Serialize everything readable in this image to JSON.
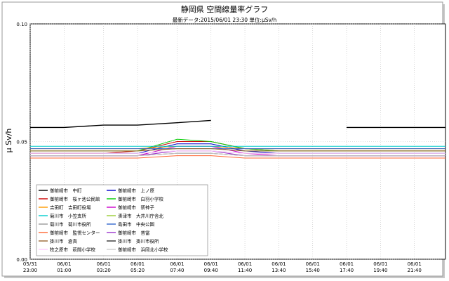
{
  "chart_data": {
    "type": "line",
    "title": "静岡県 空間線量率グラフ",
    "subtitle": "最新データ:2015/06/01 23:30   単位:μSv/h",
    "ylabel": "μ Sv/h",
    "xlabel": "",
    "ylim": [
      0,
      0.1
    ],
    "yticks": [
      "0.00",
      "0.05",
      "0.10"
    ],
    "grid": true,
    "legend_position": "bottom-left",
    "x": [
      "05/31 23:00",
      "06/01 01:00",
      "06/01 03:20",
      "06/01 05:20",
      "06/01 07:40",
      "06/01 09:40",
      "06/01 11:40",
      "06/01 13:40",
      "06/01 15:40",
      "06/01 17:40",
      "06/01 19:40",
      "06/01 21:40",
      "06/01 23:30"
    ],
    "xtick_date": [
      "05/31",
      "06/01",
      "06/01",
      "06/01",
      "06/01",
      "06/01",
      "06/01",
      "06/01",
      "06/01",
      "06/01",
      "06/01",
      "06/01"
    ],
    "xtick_time": [
      "23:00",
      "01:00",
      "03:20",
      "05:20",
      "07:40",
      "09:40",
      "11:40",
      "13:40",
      "15:40",
      "17:40",
      "19:40",
      "21:40"
    ],
    "series": [
      {
        "name": "御前崎市　中町",
        "color": "#000000",
        "values": [
          0.056,
          0.056,
          0.057,
          0.057,
          0.058,
          0.059,
          null,
          null,
          null,
          0.056,
          0.056,
          0.056,
          0.056
        ]
      },
      {
        "name": "御前崎市　上ノ原",
        "color": "#0000cc",
        "values": [
          0.045,
          0.045,
          0.045,
          0.045,
          0.049,
          0.049,
          0.046,
          0.045,
          0.045,
          0.045,
          0.045,
          0.045,
          0.045
        ]
      },
      {
        "name": "御前崎市　桜ヶ池公民館",
        "color": "#cc0000",
        "values": [
          0.045,
          0.045,
          0.045,
          0.046,
          0.05,
          0.05,
          0.047,
          0.046,
          0.046,
          0.046,
          0.046,
          0.046,
          0.046
        ]
      },
      {
        "name": "御前崎市　白羽小学校",
        "color": "#00cc00",
        "values": [
          0.046,
          0.046,
          0.046,
          0.046,
          0.051,
          0.05,
          0.047,
          0.046,
          0.046,
          0.046,
          0.046,
          0.046,
          0.046
        ]
      },
      {
        "name": "吉田町　吉田町役場",
        "color": "#ff9900",
        "values": [
          0.047,
          0.047,
          0.047,
          0.047,
          0.048,
          0.048,
          0.047,
          0.047,
          0.047,
          0.047,
          0.047,
          0.047,
          0.047
        ]
      },
      {
        "name": "御前崎市　新神子",
        "color": "#cc00cc",
        "values": [
          0.044,
          0.044,
          0.044,
          0.044,
          0.048,
          0.048,
          0.045,
          0.044,
          0.044,
          0.044,
          0.044,
          0.044,
          0.044
        ]
      },
      {
        "name": "菊川市　小笠支所",
        "color": "#00cccc",
        "values": [
          0.048,
          0.048,
          0.048,
          0.048,
          0.048,
          0.048,
          0.048,
          0.048,
          0.048,
          0.048,
          0.048,
          0.048,
          0.048
        ]
      },
      {
        "name": "湊津市　大井川庁舎北",
        "color": "#99cc33",
        "values": [
          0.046,
          0.046,
          0.046,
          0.046,
          0.047,
          0.047,
          0.046,
          0.046,
          0.046,
          0.046,
          0.046,
          0.046,
          0.046
        ]
      },
      {
        "name": "菊川市　菊川市役所",
        "color": "#999999",
        "values": [
          0.045,
          0.045,
          0.045,
          0.045,
          0.046,
          0.046,
          0.045,
          0.045,
          0.045,
          0.045,
          0.045,
          0.045,
          0.045
        ]
      },
      {
        "name": "島田市　中央公園",
        "color": "#3366cc",
        "values": [
          0.047,
          0.047,
          0.047,
          0.047,
          0.047,
          0.047,
          0.047,
          0.047,
          0.047,
          0.047,
          0.047,
          0.047,
          0.047
        ]
      },
      {
        "name": "御前崎市　監視センター",
        "color": "#ff6633",
        "values": [
          0.043,
          0.043,
          0.043,
          0.043,
          0.044,
          0.044,
          0.043,
          0.043,
          0.043,
          0.043,
          0.043,
          0.043,
          0.043
        ]
      },
      {
        "name": "御前崎市　普當",
        "color": "#9933cc",
        "values": [
          0.044,
          0.044,
          0.044,
          0.044,
          0.046,
          0.046,
          0.044,
          0.044,
          0.044,
          0.044,
          0.044,
          0.044,
          0.044
        ]
      },
      {
        "name": "掛川市　倉真",
        "color": "#996633",
        "values": [
          0.046,
          0.046,
          0.046,
          0.046,
          0.047,
          0.047,
          0.046,
          0.046,
          0.046,
          0.046,
          0.046,
          0.046,
          0.046
        ]
      },
      {
        "name": "掛川市　掛川市役所",
        "color": "#333333",
        "values": [
          0.044,
          0.044,
          0.044,
          0.044,
          0.045,
          0.045,
          0.044,
          0.044,
          0.044,
          0.044,
          0.044,
          0.044,
          0.044
        ]
      },
      {
        "name": "牧之原市　萩間小学校",
        "color": "#ffccff",
        "values": [
          0.045,
          0.045,
          0.045,
          0.045,
          0.046,
          0.046,
          0.045,
          0.045,
          0.045,
          0.045,
          0.045,
          0.045,
          0.045
        ]
      },
      {
        "name": "御前崎市　浜岡北小学校",
        "color": "#cccccc",
        "values": [
          0.044,
          0.044,
          0.044,
          0.044,
          0.045,
          0.045,
          0.044,
          0.044,
          0.044,
          0.044,
          0.044,
          0.044,
          0.044
        ]
      }
    ]
  }
}
